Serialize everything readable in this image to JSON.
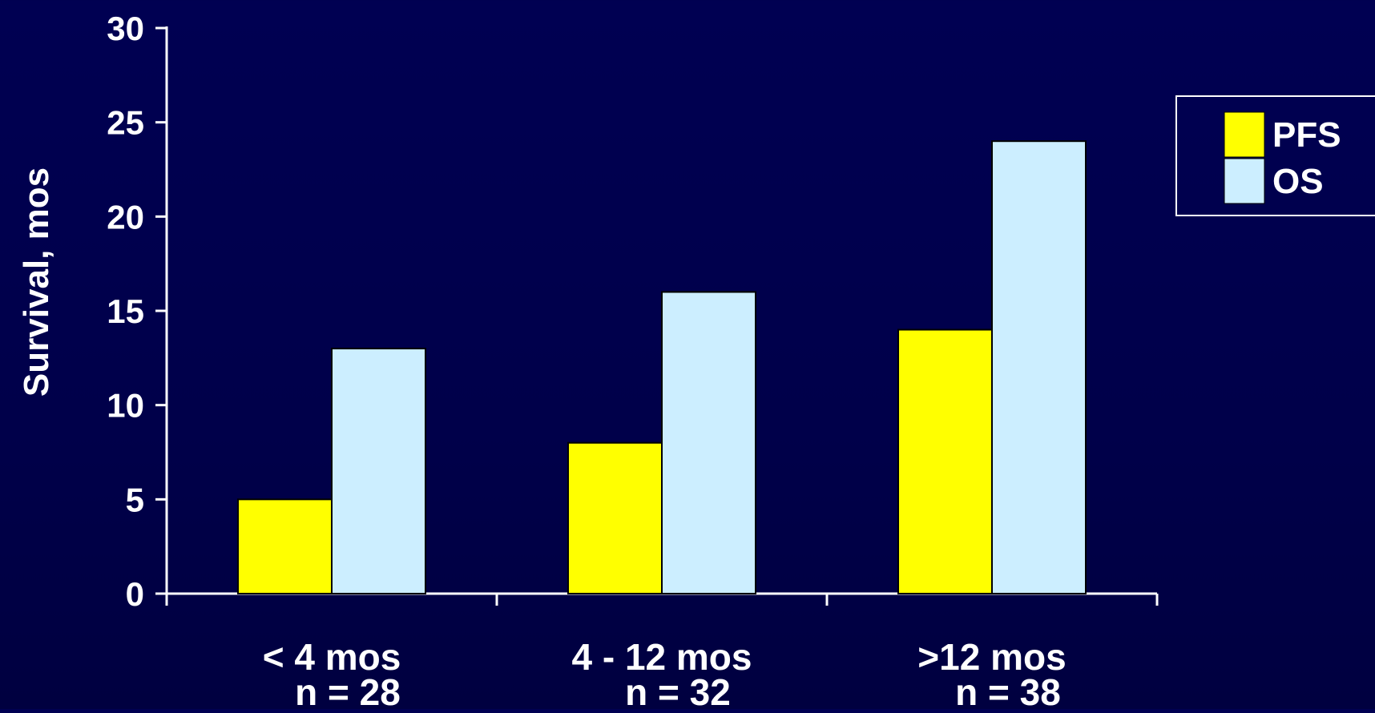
{
  "chart_data": {
    "type": "bar",
    "categories": [
      "< 4 mos",
      "4 - 12 mos",
      ">12 mos"
    ],
    "category_sublabels": [
      "n = 28",
      "n = 32",
      "n = 38"
    ],
    "series": [
      {
        "name": "PFS",
        "values": [
          5,
          8,
          14
        ],
        "color": "#ffff00"
      },
      {
        "name": "OS",
        "values": [
          13,
          16,
          24
        ],
        "color": "#cceeff"
      }
    ],
    "ylabel": "Survival, mos",
    "xlabel": "",
    "ylim": [
      0,
      30
    ],
    "yticks": [
      0,
      5,
      10,
      15,
      20,
      25,
      30
    ],
    "grid": false,
    "legend_position": "top-right",
    "colors": {
      "background": "#000050",
      "axis": "#ffffff",
      "text": "#ffffff",
      "bar_outline": "#000000"
    }
  }
}
